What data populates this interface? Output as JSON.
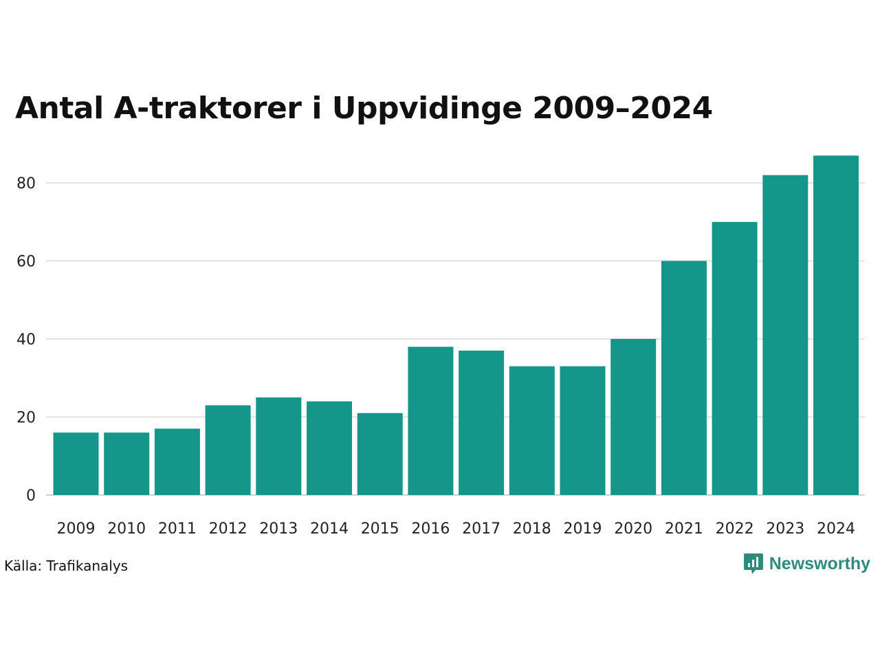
{
  "chart_data": {
    "type": "bar",
    "title": "Antal A-traktorer i Uppvidinge 2009–2024",
    "categories": [
      "2009",
      "2010",
      "2011",
      "2012",
      "2013",
      "2014",
      "2015",
      "2016",
      "2017",
      "2018",
      "2019",
      "2020",
      "2021",
      "2022",
      "2023",
      "2024"
    ],
    "values": [
      16,
      16,
      17,
      23,
      25,
      24,
      21,
      38,
      37,
      33,
      33,
      40,
      60,
      70,
      82,
      87
    ],
    "yticks": [
      0,
      20,
      40,
      60,
      80
    ],
    "ylim": [
      0,
      90
    ],
    "xlabel": "",
    "ylabel": "",
    "grid": true,
    "bar_color": "#15968a"
  },
  "source": "Källa: Trafikanalys",
  "brand": {
    "name": "Newsworthy",
    "icon": "newsworthy-logo-icon",
    "color": "#2e8b7c"
  }
}
